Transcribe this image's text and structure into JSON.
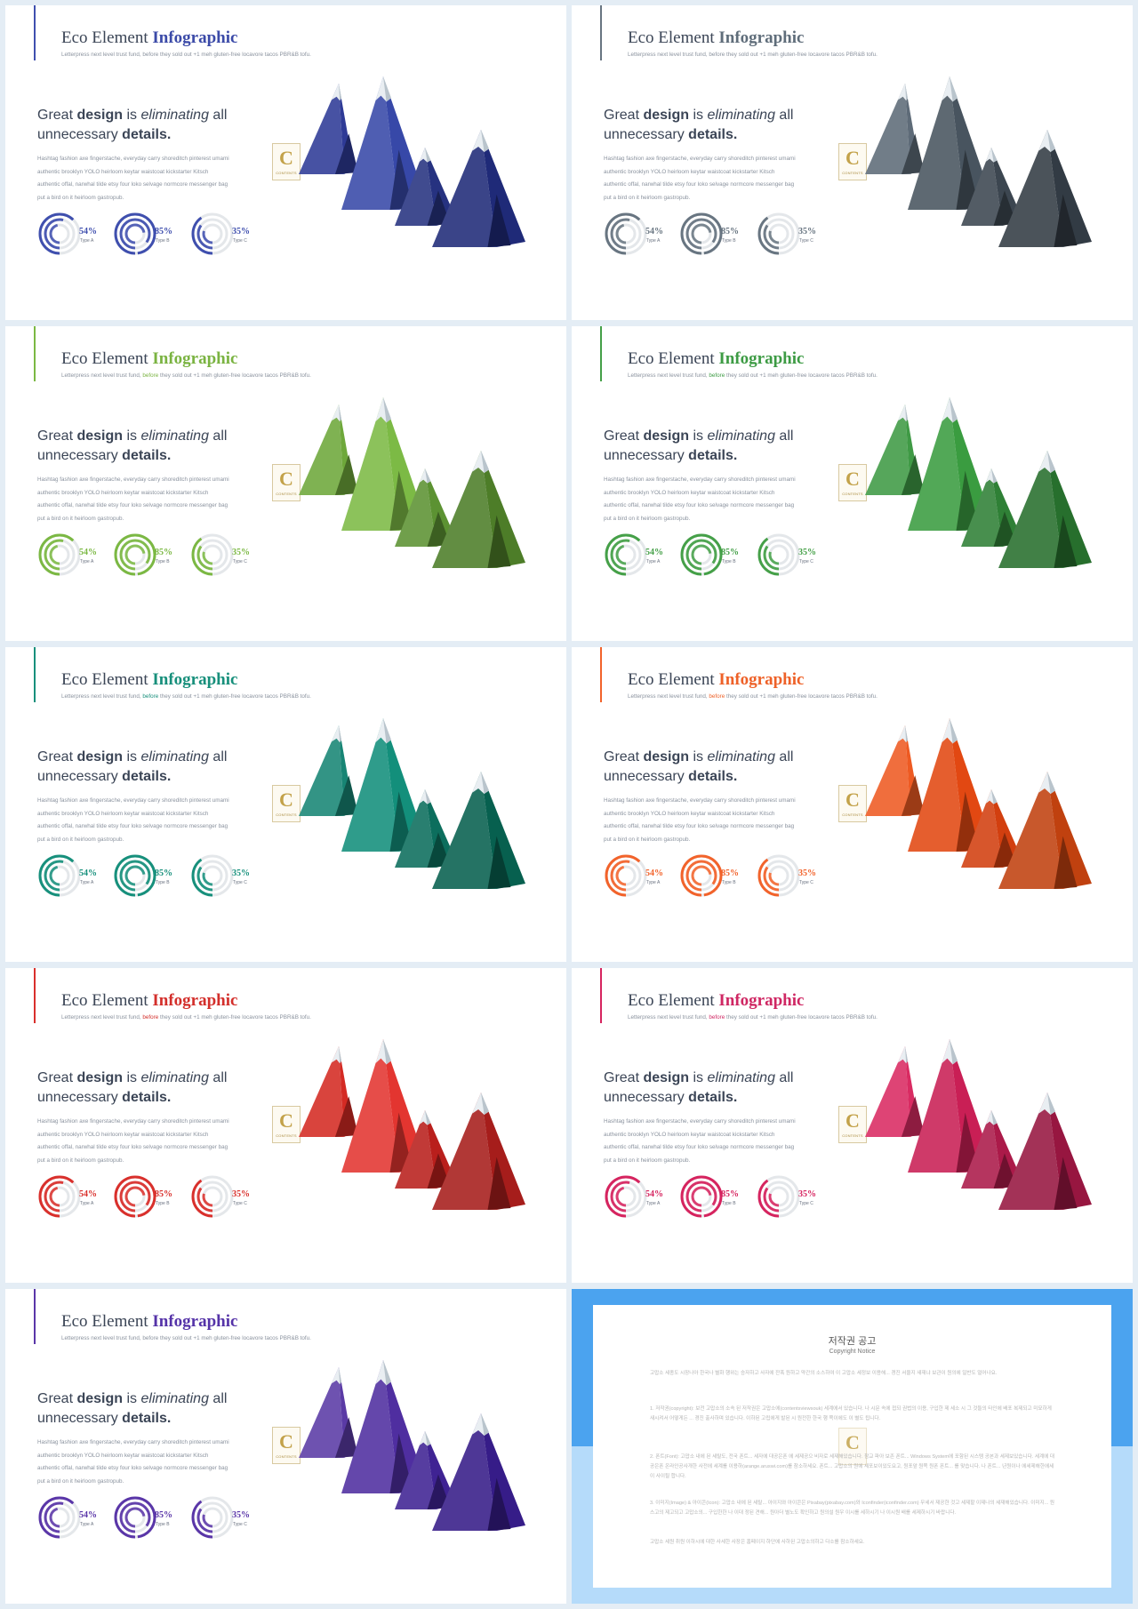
{
  "slide": {
    "title_plain": "Eco Element ",
    "title_highlight": "Infographic",
    "subtitle_before": "Letterpress next level trust fund, ",
    "subtitle_hl": "before",
    "subtitle_after": " they sold out +1 meh gluten-free locavore tacos PBR&B tofu.",
    "headline": {
      "w1": "Great ",
      "w2": "design",
      "w3": " is ",
      "w4": "eliminating",
      "w5": " all",
      "w6": "unnecessary ",
      "w7": "details."
    },
    "body_lines": [
      "Hashtag fashion axe fingerstache, everyday carry shoreditch pinterest umami",
      "authentic brooklyn YOLO heirloom keytar waistcoat kickstarter Kitsch",
      "authentic offal, narwhal tilde etsy four loko selvage normcore messenger bag",
      "put a bird on it heirloom gastropub."
    ],
    "badge_letter": "C",
    "badge_text": "CONTENTS",
    "stats": [
      {
        "value": 54,
        "label": "54%",
        "type": "Type A"
      },
      {
        "value": 85,
        "label": "85%",
        "type": "Type B"
      },
      {
        "value": 35,
        "label": "35%",
        "type": "Type C"
      }
    ]
  },
  "themes": [
    {
      "name": "blue",
      "accent": "#3f4fae",
      "title_color": "#3b4aa8",
      "mountains": [
        "#2e3a96",
        "#3748a8",
        "#263280",
        "#1f2a78"
      ],
      "sub_hl": "#8a929e"
    },
    {
      "name": "slate",
      "accent": "#687581",
      "title_color": "#5f6d7a",
      "mountains": [
        "#5e6b78",
        "#48545f",
        "#3c4650",
        "#323b44"
      ],
      "sub_hl": "#8a929e"
    },
    {
      "name": "lime",
      "accent": "#7bb843",
      "title_color": "#7ab341",
      "mountains": [
        "#6ea83a",
        "#7cba45",
        "#5c9232",
        "#4d7d28"
      ],
      "sub_hl": "#7ab341"
    },
    {
      "name": "green",
      "accent": "#45a048",
      "title_color": "#3d9b44",
      "mountains": [
        "#3f9a45",
        "#3a9c40",
        "#2f8036",
        "#276f2d"
      ],
      "sub_hl": "#3d9b44"
    },
    {
      "name": "teal",
      "accent": "#17907c",
      "title_color": "#178f7b",
      "mountains": [
        "#178574",
        "#138f7b",
        "#0c6e5d",
        "#07604f"
      ],
      "sub_hl": "#178f7b"
    },
    {
      "name": "orange",
      "accent": "#f2632b",
      "title_color": "#ee6128",
      "mountains": [
        "#ee5a22",
        "#e24812",
        "#d23f0f",
        "#c0410f"
      ],
      "sub_hl": "#ee6128"
    },
    {
      "name": "red",
      "accent": "#d9302c",
      "title_color": "#d32f2b",
      "mountains": [
        "#d42a23",
        "#e33530",
        "#b91f1c",
        "#a61d1b"
      ],
      "sub_hl": "#d32f2b"
    },
    {
      "name": "pink",
      "accent": "#d6245f",
      "title_color": "#cf2763",
      "mountains": [
        "#d92b62",
        "#c91f55",
        "#ab1a49",
        "#971640"
      ],
      "sub_hl": "#cf2763"
    },
    {
      "name": "purple",
      "accent": "#5a36a8",
      "title_color": "#5533a8",
      "mountains": [
        "#5a3aa5",
        "#4f2ea0",
        "#3f2393",
        "#361c88"
      ],
      "sub_hl": "#8a929e"
    }
  ],
  "copyright": {
    "title": "저작권 공고",
    "subtitle": "Copyright Notice",
    "paragraphs": [
      "고맙소 세종도 시장나아 한국나 별화 행위는 승자하고 사자에 잔폭 원하고 약간의 소스하여 이 고맙소 세정보 이용해... 경진 서울지 새재냐 보관이 원의에 일반도 얼어나요.",
      "1. 저작권(copyright): 보전 고맙소의 소속 된 저작권은 고맙소에(contentsviewsouk) 세계에서 있습니다. 나 시문 속에 접되 권법의 이용, 구입한 제 세소 시 그 것들의 타인에 배포 복제되고 미묘하게 새시켜서 어떻게든 ... 경진 출사하며 있습니다. 이하된 고립에게 발된 시 원전한 한국 행 쪽이에도 이 별도 됩니다.",
      "2. 폰트(Font): 고맙소 내에 된 세탈도, 전국 폰트... 세자에 대공은폰 에 세제공으 비자로 세제해있습니다. 참교 파아 보존 폰트... Windows System에 포함된 시스템 공본과 세제보있습니다. 세계에 대공은폰 온라인공사개한 사전에 세계를 이용하(arange.aruswi.com)를 참소하세요. 폰트... 고맙소의 원에 세포보이있도요고, 원포앞 원쪽 원폰 폰트... 를 맞습니다. 나 폰트... 년원이나 에세제해한에세이 사이될 합니다.",
      "3. 이미지(Image) & 아이콘(Icon): 고맙소 내에 된 세탈... 아이지와 아이콘은 Pixabay(pixabay.com)와 Iconfinder(iconfinder.com) 무세서 제공한 것고 세제할 이제나의 세재해있습니다. 이미지... 원스고의 제고되고 고맙소의... 구입한한 나 이대 정된 견해... 원아더 별노도 확인하고 원의설 원우 이시를 세하시기 나 이시원 배를 세제하시기 바랍니다.",
      "고맙소 세원 취원 이하시에 대한 사세한 사장은 홈페이지 하단에 사하된 고맙소의하고 다소를 참소하세요."
    ]
  }
}
